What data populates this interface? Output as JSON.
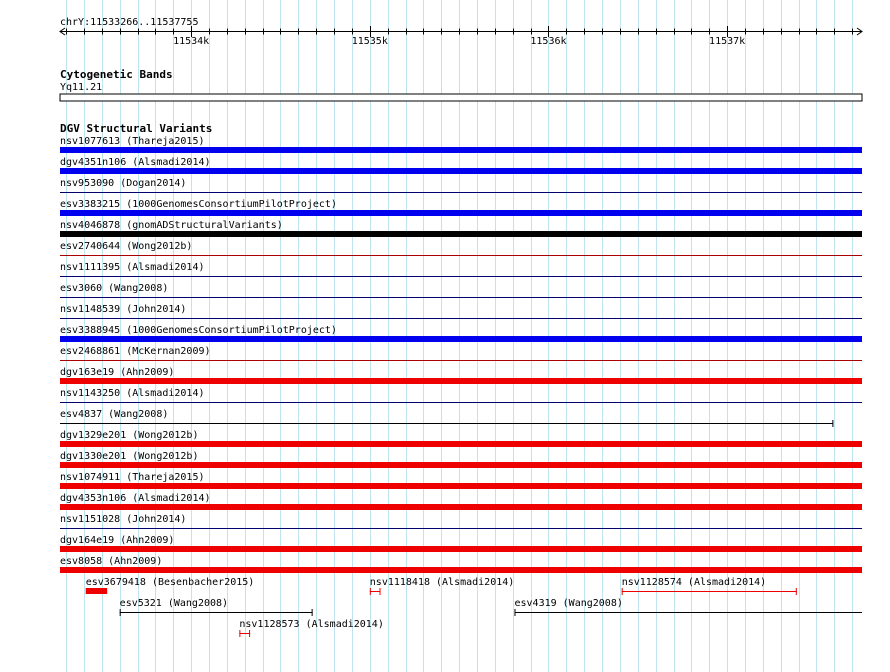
{
  "location": "chrY:11533266..11537755",
  "ruler": {
    "start": 11533266,
    "end": 11537755,
    "ticks": [
      {
        "pos": 11534000,
        "label": "11534k"
      },
      {
        "pos": 11535000,
        "label": "11535k"
      },
      {
        "pos": 11536000,
        "label": "11536k"
      },
      {
        "pos": 11537000,
        "label": "11537k"
      }
    ]
  },
  "cytoband_track": {
    "title": "Cytogenetic Bands",
    "band": "Yq11.21"
  },
  "dgv_track": {
    "title": "DGV Structural Variants",
    "colors": {
      "blue": "#0000ee",
      "red": "#ee0000",
      "black": "#000000",
      "navy": "#00006e",
      "darkred": "#aa0000"
    },
    "full_rows": [
      {
        "label": "nsv1077613 (Thareja2015)",
        "style": "thick",
        "color": "blue"
      },
      {
        "label": "dgv4351n106 (Alsmadi2014)",
        "style": "thick",
        "color": "blue"
      },
      {
        "label": "nsv953090 (Dogan2014)",
        "style": "thin",
        "color": "navy"
      },
      {
        "label": "esv3383215 (1000GenomesConsortiumPilotProject)",
        "style": "thick",
        "color": "blue"
      },
      {
        "label": "nsv4046878 (gnomADStructuralVariants)",
        "style": "thick",
        "color": "black"
      },
      {
        "label": "esv2740644 (Wong2012b)",
        "style": "thin",
        "color": "darkred"
      },
      {
        "label": "nsv1111395 (Alsmadi2014)",
        "style": "thin",
        "color": "navy"
      },
      {
        "label": "esv3060 (Wang2008)",
        "style": "thin",
        "color": "navy"
      },
      {
        "label": "nsv1148539 (John2014)",
        "style": "thin",
        "color": "navy"
      },
      {
        "label": "esv3388945 (1000GenomesConsortiumPilotProject)",
        "style": "thick",
        "color": "blue"
      },
      {
        "label": "esv2468861 (McKernan2009)",
        "style": "thin",
        "color": "darkred"
      },
      {
        "label": "dgv163e19 (Ahn2009)",
        "style": "thick",
        "color": "red"
      },
      {
        "label": "nsv1143250 (Alsmadi2014)",
        "style": "thin",
        "color": "navy"
      },
      {
        "label": "esv4837 (Wang2008)",
        "style": "bracket",
        "color": "black",
        "end": 11537592
      },
      {
        "label": "dgv1329e201 (Wong2012b)",
        "style": "thick",
        "color": "red"
      },
      {
        "label": "dgv1330e201 (Wong2012b)",
        "style": "thick",
        "color": "red"
      },
      {
        "label": "nsv1074911 (Thareja2015)",
        "style": "thick",
        "color": "red"
      },
      {
        "label": "dgv4353n106 (Alsmadi2014)",
        "style": "thick",
        "color": "red"
      },
      {
        "label": "nsv1151028 (John2014)",
        "style": "thin",
        "color": "navy"
      },
      {
        "label": "dgv164e19 (Ahn2009)",
        "style": "thick",
        "color": "red"
      },
      {
        "label": "esv8058 (Ahn2009)",
        "style": "thick",
        "color": "red"
      }
    ],
    "partial_features": [
      {
        "label": "esv3679418 (Besenbacher2015)",
        "start": 11533410,
        "end": 11533530,
        "style": "thick",
        "color": "red",
        "lane": 0
      },
      {
        "label": "nsv1118418 (Alsmadi2014)",
        "start": 11535000,
        "end": 11535060,
        "style": "bracket",
        "color": "red",
        "lane": 0
      },
      {
        "label": "nsv1128574 (Alsmadi2014)",
        "start": 11536410,
        "end": 11537390,
        "style": "bracket",
        "color": "red",
        "lane": 0
      },
      {
        "label": "esv5321 (Wang2008)",
        "start": 11533600,
        "end": 11534680,
        "style": "bracket",
        "color": "black",
        "lane": 1
      },
      {
        "label": "esv4319 (Wang2008)",
        "start": 11535810,
        "end": 11537755,
        "style": "bracket-open",
        "color": "black",
        "lane": 1
      },
      {
        "label": "nsv1128573 (Alsmadi2014)",
        "start": 11534270,
        "end": 11534330,
        "style": "bracket",
        "color": "red",
        "lane": 2
      }
    ]
  }
}
